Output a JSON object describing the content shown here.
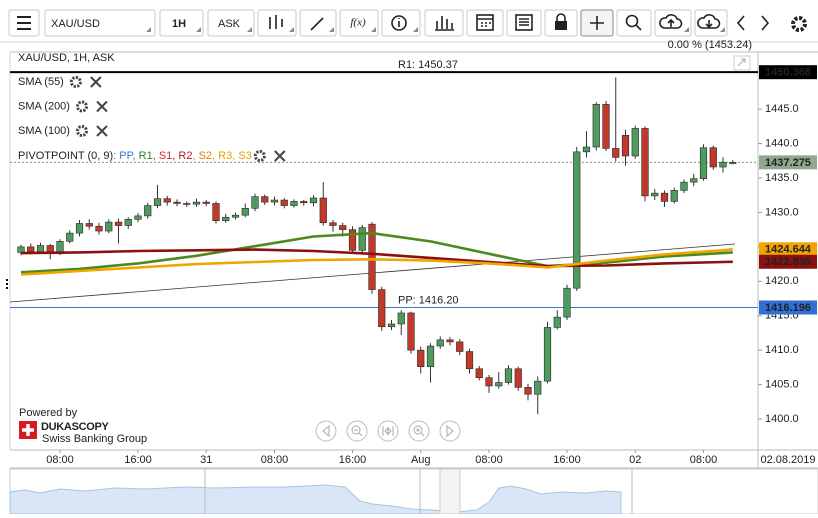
{
  "toolbar": {
    "symbol": "XAU/USD",
    "interval": "1H",
    "price_type": "ASK",
    "function_label": "f(x)"
  },
  "branding": {
    "powered_by": "Powered by",
    "logo": "DUKASCOPY",
    "tagline": "Swiss Banking Group"
  },
  "chart_data": {
    "type": "candlestick",
    "title": "XAU/USD, 1H, ASK",
    "header_label": "0.00 % (1453.24)",
    "date_label": "02.08.2019",
    "categories": [
      null,
      null,
      null,
      null,
      "08:00",
      null,
      null,
      null,
      null,
      null,
      null,
      null,
      "16:00",
      null,
      null,
      null,
      null,
      null,
      null,
      "31",
      null,
      null,
      null,
      null,
      null,
      null,
      "08:00",
      null,
      null,
      null,
      null,
      null,
      null,
      null,
      "16:00",
      null,
      null,
      null,
      null,
      null,
      null,
      "Aug",
      null,
      null,
      null,
      null,
      null,
      null,
      "08:00",
      null,
      null,
      null,
      null,
      null,
      null,
      null,
      "16:00",
      null,
      null,
      null,
      null,
      null,
      null,
      "02",
      null,
      null,
      null,
      null,
      null,
      null,
      "08:00",
      null,
      null,
      null
    ],
    "open": [
      1424.2,
      1425.0,
      1424.3,
      1425.2,
      1424.0,
      1425.8,
      1427.0,
      1428.4,
      1428.0,
      1427.3,
      1428.6,
      1428.1,
      1429.0,
      1429.5,
      1431.0,
      1432.0,
      1431.5,
      1431.3,
      1431.2,
      1431.5,
      1431.3,
      1428.8,
      1429.3,
      1429.6,
      1430.6,
      1432.3,
      1431.5,
      1431.8,
      1431.0,
      1431.6,
      1431.4,
      1432.1,
      1428.5,
      1428.1,
      1427.5,
      1424.5,
      1428.3,
      1418.8,
      1413.4,
      1413.8,
      1415.4,
      1410.0,
      1407.6,
      1410.6,
      1411.5,
      1411.2,
      1409.8,
      1407.3,
      1406.0,
      1404.8,
      1405.3,
      1407.3,
      1404.6,
      1403.6,
      1405.5,
      1413.3,
      1414.8,
      1419.0,
      1438.8,
      1439.5,
      1445.7,
      1439.3,
      1441.2,
      1438.2,
      1442.2,
      1432.4,
      1432.8,
      1431.6,
      1433.2,
      1434.4,
      1434.9,
      1439.4,
      1436.6,
      1437.1
    ],
    "high": [
      1425.3,
      1425.5,
      1425.6,
      1425.4,
      1426.1,
      1427.4,
      1428.9,
      1429.0,
      1428.5,
      1429.0,
      1429.1,
      1429.3,
      1429.9,
      1431.4,
      1434.0,
      1432.4,
      1431.9,
      1431.6,
      1432.0,
      1431.8,
      1431.6,
      1429.8,
      1430.0,
      1431.3,
      1432.7,
      1432.6,
      1432.3,
      1432.1,
      1431.9,
      1431.8,
      1432.5,
      1434.4,
      1428.9,
      1428.5,
      1428.0,
      1428.2,
      1428.6,
      1419.2,
      1414.4,
      1415.8,
      1415.6,
      1410.5,
      1411.0,
      1412.0,
      1411.9,
      1411.6,
      1410.2,
      1407.7,
      1406.4,
      1406.8,
      1407.8,
      1407.6,
      1405.1,
      1406.2,
      1414.1,
      1415.8,
      1419.5,
      1439.5,
      1441.8,
      1446.0,
      1446.2,
      1449.6,
      1442.0,
      1442.6,
      1442.5,
      1433.4,
      1433.2,
      1433.6,
      1434.8,
      1435.6,
      1439.9,
      1439.7,
      1438.0,
      1437.6
    ],
    "low": [
      1423.8,
      1423.9,
      1424.0,
      1423.2,
      1423.8,
      1425.5,
      1426.5,
      1427.5,
      1426.8,
      1427.0,
      1425.5,
      1427.6,
      1428.6,
      1429.1,
      1430.6,
      1431.0,
      1430.9,
      1430.8,
      1430.8,
      1430.9,
      1428.4,
      1428.5,
      1429.0,
      1429.3,
      1430.2,
      1431.1,
      1431.0,
      1430.6,
      1430.7,
      1431.0,
      1430.9,
      1428.1,
      1427.2,
      1426.5,
      1424.0,
      1424.2,
      1418.2,
      1412.8,
      1412.9,
      1412.2,
      1409.5,
      1406.6,
      1405.3,
      1410.2,
      1410.7,
      1409.3,
      1406.6,
      1405.6,
      1403.8,
      1404.4,
      1405.0,
      1404.1,
      1402.7,
      1400.7,
      1405.2,
      1413.0,
      1414.4,
      1418.6,
      1438.0,
      1439.0,
      1438.9,
      1437.4,
      1436.8,
      1437.8,
      1431.6,
      1431.8,
      1430.8,
      1431.3,
      1432.8,
      1433.8,
      1434.6,
      1436.2,
      1435.8,
      1437.0
    ],
    "close": [
      1425.0,
      1424.3,
      1425.2,
      1424.0,
      1425.8,
      1427.0,
      1428.4,
      1428.0,
      1427.3,
      1428.6,
      1428.1,
      1429.0,
      1429.5,
      1431.0,
      1432.0,
      1431.5,
      1431.3,
      1431.2,
      1431.5,
      1431.3,
      1428.8,
      1429.3,
      1429.6,
      1430.6,
      1432.3,
      1431.5,
      1431.8,
      1431.0,
      1431.6,
      1431.4,
      1432.1,
      1428.5,
      1428.1,
      1427.5,
      1424.5,
      1427.8,
      1418.8,
      1413.4,
      1413.8,
      1415.4,
      1410.0,
      1407.6,
      1410.6,
      1411.5,
      1411.2,
      1409.8,
      1407.3,
      1406.0,
      1404.8,
      1405.3,
      1407.3,
      1404.6,
      1403.6,
      1405.5,
      1413.3,
      1414.8,
      1419.0,
      1438.8,
      1439.5,
      1445.7,
      1439.3,
      1438.0,
      1438.2,
      1442.2,
      1432.4,
      1432.8,
      1431.6,
      1433.2,
      1434.4,
      1434.9,
      1439.4,
      1436.6,
      1437.3,
      1437.275
    ],
    "up_color": "#4f9a5f",
    "down_color": "#c0392b",
    "series": [
      {
        "name": "SMA (55)",
        "color": "#4a8a1e",
        "x": [
          0,
          6,
          12,
          18,
          24,
          30,
          36,
          42,
          48,
          54,
          60,
          66,
          72,
          73
        ],
        "values": [
          1421.3,
          1421.8,
          1422.6,
          1423.7,
          1425.1,
          1426.5,
          1427.0,
          1425.8,
          1424.0,
          1422.2,
          1422.7,
          1423.6,
          1424.1,
          1424.2
        ]
      },
      {
        "name": "SMA (200)",
        "color": "#8b1010",
        "x": [
          0,
          6,
          12,
          18,
          24,
          30,
          36,
          42,
          48,
          54,
          60,
          66,
          72,
          73
        ],
        "values": [
          1424.1,
          1424.2,
          1424.4,
          1424.5,
          1424.6,
          1424.4,
          1424.0,
          1423.4,
          1422.8,
          1422.2,
          1422.3,
          1422.6,
          1422.8,
          1422.836
        ]
      },
      {
        "name": "SMA (100)",
        "color": "#f0a500",
        "x": [
          0,
          6,
          12,
          18,
          24,
          30,
          36,
          42,
          48,
          54,
          60,
          66,
          72,
          73
        ],
        "values": [
          1421.0,
          1421.5,
          1422.0,
          1422.5,
          1422.8,
          1423.1,
          1423.2,
          1423.0,
          1422.6,
          1422.0,
          1423.0,
          1423.9,
          1424.5,
          1424.644
        ]
      }
    ],
    "pivot_indicator": {
      "name": "PIVOTPOINT (0, 9)",
      "parts": [
        {
          "text": ": PP",
          "color": "#3a78d8"
        },
        {
          "text": ", R1",
          "color": "#2e7d32"
        },
        {
          "text": ", S1",
          "color": "#c62828"
        },
        {
          "text": ", R2",
          "color": "#b71c1c"
        },
        {
          "text": ", S2",
          "color": "#e67e00"
        },
        {
          "text": ", R3",
          "color": "#e6a000"
        },
        {
          "text": ", S3",
          "color": "#e6a000"
        }
      ]
    },
    "levels": [
      {
        "label": "R1: 1450.37",
        "value": 1450.37,
        "color": "#3d7a1c",
        "line_color": "#000000",
        "line_width": 2
      },
      {
        "label": "PP: 1416.20",
        "value": 1416.2,
        "color": "#3a78d8",
        "line_color": "#3a78d8",
        "line_width": 1
      }
    ],
    "price_tags": [
      {
        "value": 1450.368,
        "color": "#000000",
        "text_color": "#ffffff"
      },
      {
        "value": 1437.275,
        "color": "#8fa88f",
        "text_color": "#ffffff"
      },
      {
        "value": 1424.644,
        "color": "#f0a500",
        "text_color": "#000000"
      },
      {
        "value": 1422.836,
        "color": "#8b1010",
        "text_color": "#ffffff"
      },
      {
        "value": 1416.196,
        "color": "#2f6fd6",
        "text_color": "#ffffff"
      }
    ],
    "ylim": [
      1395.5,
      1453.3
    ],
    "yticks": [
      {
        "value": 1400,
        "label": "1400.0"
      },
      {
        "value": 1405,
        "label": "1405.0"
      },
      {
        "value": 1410,
        "label": "1410.0"
      },
      {
        "value": 1415,
        "label": "1415.0"
      },
      {
        "value": 1420,
        "label": "1420.0"
      },
      {
        "value": 1425,
        "label": "1425.0"
      },
      {
        "value": 1430,
        "label": "1430.0"
      },
      {
        "value": 1435,
        "label": "1435.0"
      },
      {
        "value": 1440,
        "label": "1440.0"
      },
      {
        "value": 1445,
        "label": "1445.0"
      }
    ],
    "grid": false
  }
}
